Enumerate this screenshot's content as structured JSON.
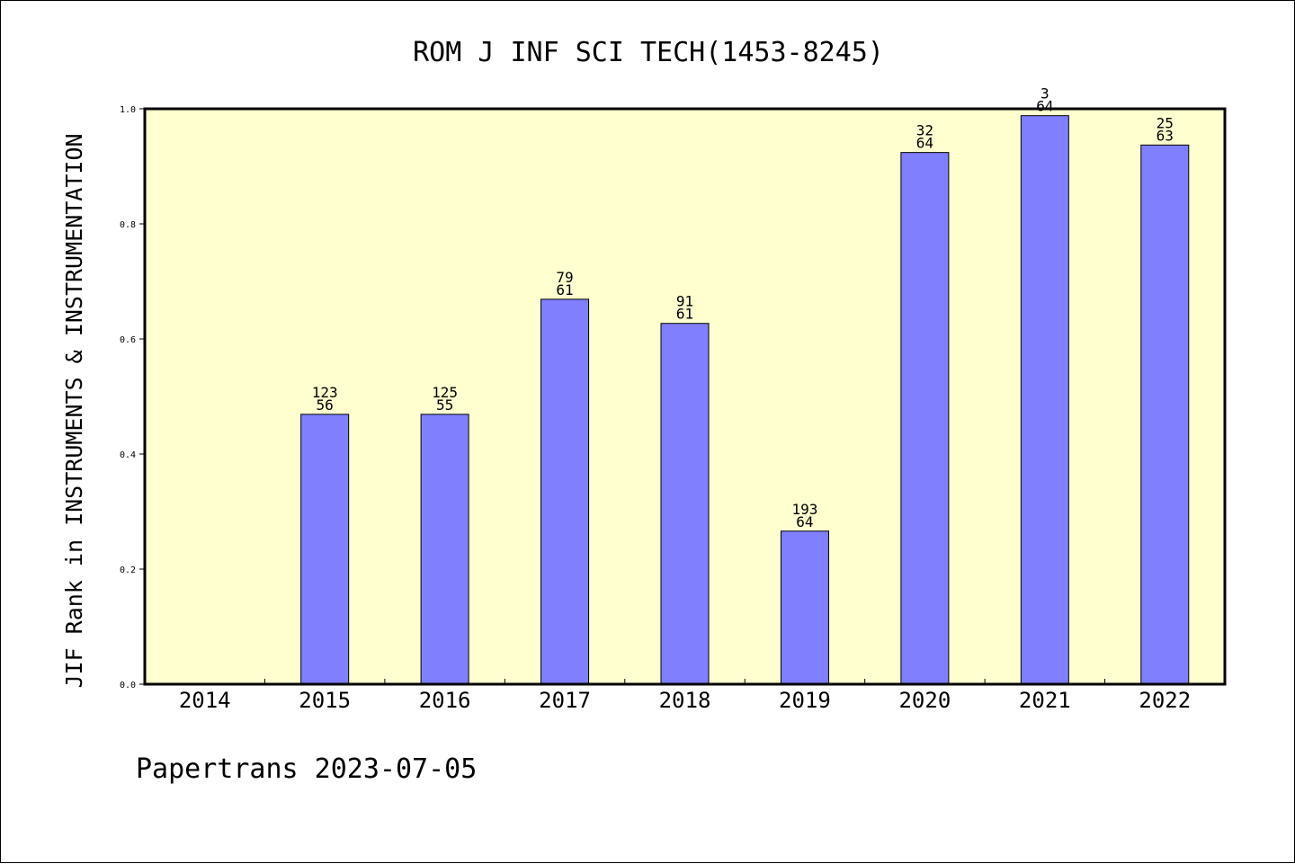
{
  "chart_data": {
    "type": "bar",
    "title": "ROM J INF SCI TECH(1453-8245)",
    "ylabel": "JIF Rank in INSTRUMENTS & INSTRUMENTATION",
    "xlabel": "",
    "ylim": [
      0,
      1.0
    ],
    "yticks": [
      "0.0",
      "0.2",
      "0.4",
      "0.6",
      "0.8",
      "1.0"
    ],
    "categories": [
      "2014",
      "2015",
      "2016",
      "2017",
      "2018",
      "2019",
      "2020",
      "2021",
      "2022"
    ],
    "values": [
      null,
      0.469,
      0.469,
      0.669,
      0.627,
      0.266,
      0.924,
      0.988,
      0.937
    ],
    "labels": [
      null,
      [
        "123",
        "56"
      ],
      [
        "125",
        "55"
      ],
      [
        "79",
        "61"
      ],
      [
        "91",
        "61"
      ],
      [
        "193",
        "64"
      ],
      [
        "32",
        "64"
      ],
      [
        "3",
        "64"
      ],
      [
        "25",
        "63"
      ]
    ],
    "grid": false,
    "plot_background": "#ffffd0",
    "bar_color": "#8080ff"
  },
  "footer": "Papertrans 2023-07-05"
}
